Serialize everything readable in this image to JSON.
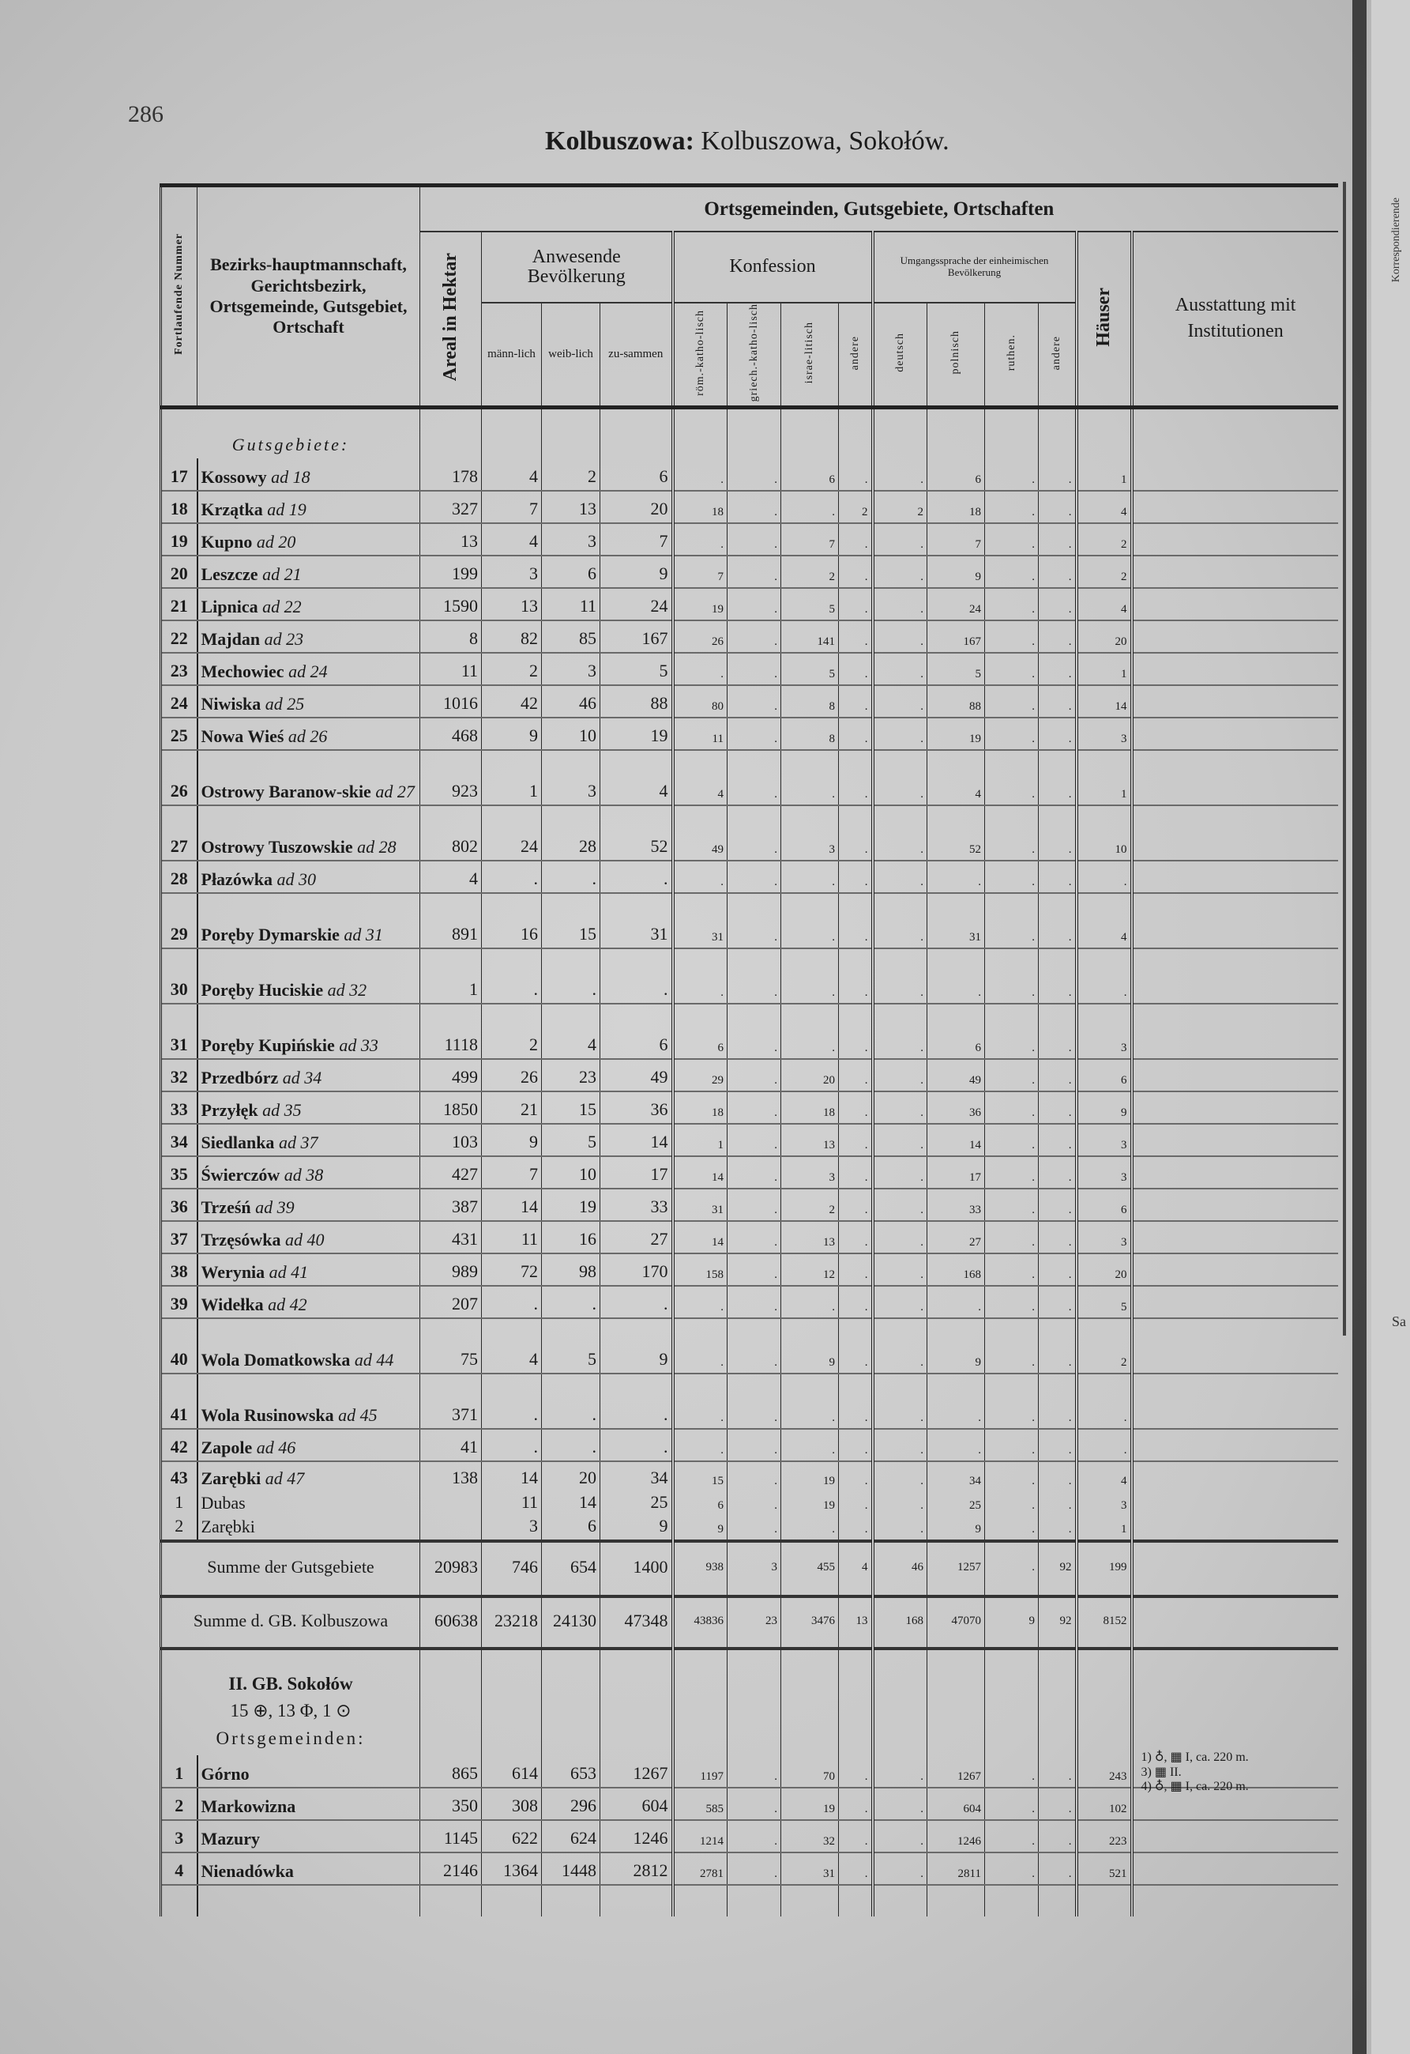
{
  "page": {
    "number": "286",
    "title_bold": "Kolbuszowa:",
    "title_rest": "Kolbuszowa, Sokołów."
  },
  "edge": {
    "vertical_text": "Korrespondierende",
    "fragment": "Sa"
  },
  "header": {
    "nr": "Fortlaufende Nummer",
    "name": "Bezirks-hauptmannschaft, Gerichtsbezirk, Ortsgemeinde, Gutsgebiet, Ortschaft",
    "top": "Ortsgemeinden, Gutsgebiete, Ortschaften",
    "areal": "Areal in Hektar",
    "population": "Anwesende Bevölkerung",
    "male": "männ-lich",
    "female": "weib-lich",
    "total": "zu-sammen",
    "confession": "Konfession",
    "rk": "röm.-katho-lisch",
    "gk": "griech.-katho-lisch",
    "isr": "israe-litisch",
    "other_conf": "andere",
    "language": "Umgangssprache der einheimischen Bevölkerung",
    "de": "deutsch",
    "pl": "polnisch",
    "ru": "ruthen.",
    "other_lang": "andere",
    "houses": "Häuser",
    "institutions": "Ausstattung mit Institutionen"
  },
  "rows": [
    {
      "type": "section",
      "label": "Gutsgebiete:"
    },
    {
      "type": "entry",
      "nr": "17",
      "name": "Kossowy",
      "ref": "ad 18",
      "v": [
        "178",
        "4",
        "2",
        "6",
        ".",
        ".",
        "6",
        ".",
        ".",
        "6",
        ".",
        ".",
        "1"
      ]
    },
    {
      "type": "entry",
      "nr": "18",
      "name": "Krzątka",
      "ref": "ad 19",
      "v": [
        "327",
        "7",
        "13",
        "20",
        "18",
        ".",
        ".",
        "2",
        "2",
        "18",
        ".",
        ".",
        "4"
      ]
    },
    {
      "type": "entry",
      "nr": "19",
      "name": "Kupno",
      "ref": "ad 20",
      "v": [
        "13",
        "4",
        "3",
        "7",
        ".",
        ".",
        "7",
        ".",
        ".",
        "7",
        ".",
        ".",
        "2"
      ]
    },
    {
      "type": "entry",
      "nr": "20",
      "name": "Leszcze",
      "ref": "ad 21",
      "v": [
        "199",
        "3",
        "6",
        "9",
        "7",
        ".",
        "2",
        ".",
        ".",
        "9",
        ".",
        ".",
        "2"
      ]
    },
    {
      "type": "entry",
      "nr": "21",
      "name": "Lipnica",
      "ref": "ad 22",
      "v": [
        "1590",
        "13",
        "11",
        "24",
        "19",
        ".",
        "5",
        ".",
        ".",
        "24",
        ".",
        ".",
        "4"
      ]
    },
    {
      "type": "entry",
      "nr": "22",
      "name": "Majdan",
      "ref": "ad 23",
      "v": [
        "8",
        "82",
        "85",
        "167",
        "26",
        ".",
        "141",
        ".",
        ".",
        "167",
        ".",
        ".",
        "20"
      ]
    },
    {
      "type": "entry",
      "nr": "23",
      "name": "Mechowiec",
      "ref": "ad 24",
      "v": [
        "11",
        "2",
        "3",
        "5",
        ".",
        ".",
        "5",
        ".",
        ".",
        "5",
        ".",
        ".",
        "1"
      ]
    },
    {
      "type": "entry",
      "nr": "24",
      "name": "Niwiska",
      "ref": "ad 25",
      "v": [
        "1016",
        "42",
        "46",
        "88",
        "80",
        ".",
        "8",
        ".",
        ".",
        "88",
        ".",
        ".",
        "14"
      ]
    },
    {
      "type": "entry",
      "nr": "25",
      "name": "Nowa Wieś",
      "ref": "ad 26",
      "v": [
        "468",
        "9",
        "10",
        "19",
        "11",
        ".",
        "8",
        ".",
        ".",
        "19",
        ".",
        ".",
        "3"
      ]
    },
    {
      "type": "entry",
      "nr": "26",
      "name": "Ostrowy Baranow-skie",
      "ref": "ad 27",
      "tall": true,
      "v": [
        "923",
        "1",
        "3",
        "4",
        "4",
        ".",
        ".",
        ".",
        ".",
        "4",
        ".",
        ".",
        "1"
      ]
    },
    {
      "type": "entry",
      "nr": "27",
      "name": "Ostrowy Tuszowskie",
      "ref": "ad 28",
      "tall": true,
      "v": [
        "802",
        "24",
        "28",
        "52",
        "49",
        ".",
        "3",
        ".",
        ".",
        "52",
        ".",
        ".",
        "10"
      ]
    },
    {
      "type": "entry",
      "nr": "28",
      "name": "Płazówka",
      "ref": "ad 30",
      "v": [
        "4",
        ".",
        ".",
        ".",
        ".",
        ".",
        ".",
        ".",
        ".",
        ".",
        ".",
        ".",
        "."
      ]
    },
    {
      "type": "entry",
      "nr": "29",
      "name": "Poręby Dymarskie",
      "ref": "ad 31",
      "tall": true,
      "v": [
        "891",
        "16",
        "15",
        "31",
        "31",
        ".",
        ".",
        ".",
        ".",
        "31",
        ".",
        ".",
        "4"
      ]
    },
    {
      "type": "entry",
      "nr": "30",
      "name": "Poręby Huciskie",
      "ref": "ad 32",
      "tall": true,
      "v": [
        "1",
        ".",
        ".",
        ".",
        ".",
        ".",
        ".",
        ".",
        ".",
        ".",
        ".",
        ".",
        "."
      ]
    },
    {
      "type": "entry",
      "nr": "31",
      "name": "Poręby Kupińskie",
      "ref": "ad 33",
      "tall": true,
      "v": [
        "1118",
        "2",
        "4",
        "6",
        "6",
        ".",
        ".",
        ".",
        ".",
        "6",
        ".",
        ".",
        "3"
      ]
    },
    {
      "type": "entry",
      "nr": "32",
      "name": "Przedbórz",
      "ref": "ad 34",
      "v": [
        "499",
        "26",
        "23",
        "49",
        "29",
        ".",
        "20",
        ".",
        ".",
        "49",
        ".",
        ".",
        "6"
      ]
    },
    {
      "type": "entry",
      "nr": "33",
      "name": "Przyłęk",
      "ref": "ad 35",
      "v": [
        "1850",
        "21",
        "15",
        "36",
        "18",
        ".",
        "18",
        ".",
        ".",
        "36",
        ".",
        ".",
        "9"
      ]
    },
    {
      "type": "entry",
      "nr": "34",
      "name": "Siedlanka",
      "ref": "ad 37",
      "v": [
        "103",
        "9",
        "5",
        "14",
        "1",
        ".",
        "13",
        ".",
        ".",
        "14",
        ".",
        ".",
        "3"
      ]
    },
    {
      "type": "entry",
      "nr": "35",
      "name": "Świerczów",
      "ref": "ad 38",
      "v": [
        "427",
        "7",
        "10",
        "17",
        "14",
        ".",
        "3",
        ".",
        ".",
        "17",
        ".",
        ".",
        "3"
      ]
    },
    {
      "type": "entry",
      "nr": "36",
      "name": "Trześń",
      "ref": "ad 39",
      "v": [
        "387",
        "14",
        "19",
        "33",
        "31",
        ".",
        "2",
        ".",
        ".",
        "33",
        ".",
        ".",
        "6"
      ]
    },
    {
      "type": "entry",
      "nr": "37",
      "name": "Trzęsówka",
      "ref": "ad 40",
      "v": [
        "431",
        "11",
        "16",
        "27",
        "14",
        ".",
        "13",
        ".",
        ".",
        "27",
        ".",
        ".",
        "3"
      ]
    },
    {
      "type": "entry",
      "nr": "38",
      "name": "Werynia",
      "ref": "ad 41",
      "v": [
        "989",
        "72",
        "98",
        "170",
        "158",
        ".",
        "12",
        ".",
        ".",
        "168",
        ".",
        ".",
        "20"
      ]
    },
    {
      "type": "entry",
      "nr": "39",
      "name": "Widełka",
      "ref": "ad 42",
      "v": [
        "207",
        ".",
        ".",
        ".",
        ".",
        ".",
        ".",
        ".",
        ".",
        ".",
        ".",
        ".",
        "5"
      ]
    },
    {
      "type": "entry",
      "nr": "40",
      "name": "Wola Domatkowska",
      "ref": "ad 44",
      "tall": true,
      "v": [
        "75",
        "4",
        "5",
        "9",
        ".",
        ".",
        "9",
        ".",
        ".",
        "9",
        ".",
        ".",
        "2"
      ]
    },
    {
      "type": "entry",
      "nr": "41",
      "name": "Wola Rusinowska",
      "ref": "ad 45",
      "tall": true,
      "v": [
        "371",
        ".",
        ".",
        ".",
        ".",
        ".",
        ".",
        ".",
        ".",
        ".",
        ".",
        ".",
        "."
      ]
    },
    {
      "type": "entry",
      "nr": "42",
      "name": "Zapole",
      "ref": "ad 46",
      "v": [
        "41",
        ".",
        ".",
        ".",
        ".",
        ".",
        ".",
        ".",
        ".",
        ".",
        ".",
        ".",
        "."
      ]
    },
    {
      "type": "group",
      "nr": "43",
      "name": "Zarębki",
      "ref": "ad 47",
      "v": [
        "138",
        "14",
        "20",
        "34",
        "15",
        ".",
        "19",
        ".",
        ".",
        "34",
        ".",
        ".",
        "4"
      ],
      "subs": [
        {
          "nr": "1",
          "name": "Dubas",
          "v": [
            "",
            "11",
            "14",
            "25",
            "6",
            ".",
            "19",
            ".",
            ".",
            "25",
            ".",
            ".",
            "3"
          ]
        },
        {
          "nr": "2",
          "name": "Zarębki",
          "v": [
            "",
            "3",
            "6",
            "9",
            "9",
            ".",
            ".",
            ".",
            ".",
            "9",
            ".",
            ".",
            "1"
          ]
        }
      ]
    },
    {
      "type": "sum",
      "label": "Summe der Gutsgebiete",
      "v": [
        "20983",
        "746",
        "654",
        "1400",
        "938",
        "3",
        "455",
        "4",
        "46",
        "1257",
        ".",
        "92",
        "199"
      ]
    },
    {
      "type": "sum",
      "label": "Summe d. GB. Kolbuszowa",
      "bold_part": "Kolbuszowa",
      "v": [
        "60638",
        "23218",
        "24130",
        "47348",
        "43836",
        "23",
        "3476",
        "13",
        "168",
        "47070",
        "9",
        "92",
        "8152"
      ]
    },
    {
      "type": "heading",
      "lines": [
        "II. GB. Sokołów",
        "15 ⊕, 13 Φ, 1 ⊙",
        "Ortsgemeinden:"
      ]
    },
    {
      "type": "entry",
      "nr": "1",
      "name": "Górno",
      "v": [
        "865",
        "614",
        "653",
        "1267",
        "1197",
        ".",
        "70",
        ".",
        ".",
        "1267",
        ".",
        ".",
        "243"
      ],
      "foot": true
    },
    {
      "type": "entry",
      "nr": "2",
      "name": "Markowizna",
      "v": [
        "350",
        "308",
        "296",
        "604",
        "585",
        ".",
        "19",
        ".",
        ".",
        "604",
        ".",
        ".",
        "102"
      ]
    },
    {
      "type": "entry",
      "nr": "3",
      "name": "Mazury",
      "v": [
        "1145",
        "622",
        "624",
        "1246",
        "1214",
        ".",
        "32",
        ".",
        ".",
        "1246",
        ".",
        ".",
        "223"
      ]
    },
    {
      "type": "entry",
      "nr": "4",
      "name": "Nienadówka",
      "v": [
        "2146",
        "1364",
        "1448",
        "2812",
        "2781",
        ".",
        "31",
        ".",
        ".",
        "2811",
        ".",
        ".",
        "521"
      ]
    },
    {
      "type": "blank"
    }
  ],
  "institutions_notes": [
    "1) ♁, ▦ I, ca. 220 m.",
    "3) ▦ II.",
    "4) ♁, ▦ I, ca. 220 m."
  ]
}
